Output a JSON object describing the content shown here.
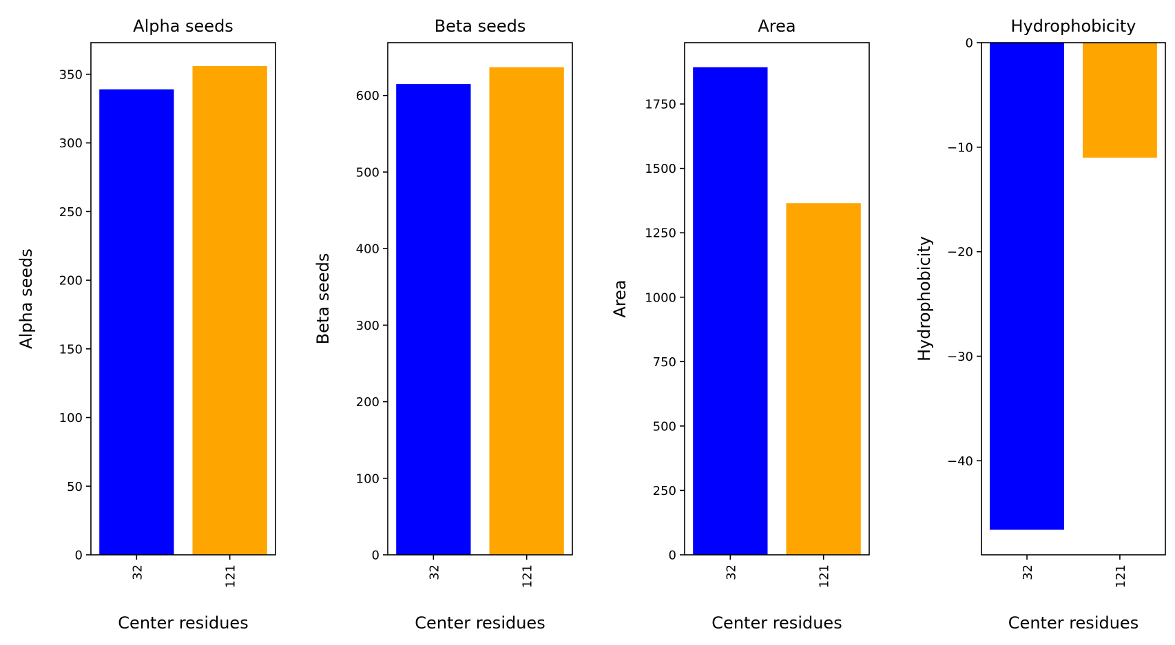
{
  "chart_data": [
    {
      "type": "bar",
      "title": "Alpha seeds",
      "xlabel": "Center residues",
      "ylabel": "Alpha seeds",
      "categories": [
        "32",
        "121"
      ],
      "values": [
        339,
        356
      ],
      "colors": [
        "#0000ff",
        "#ffa500"
      ],
      "ylim": [
        0,
        373
      ],
      "yticks": [
        0,
        50,
        100,
        150,
        200,
        250,
        300,
        350
      ],
      "ytick_labels": [
        "0",
        "50",
        "100",
        "150",
        "200",
        "250",
        "300",
        "350"
      ]
    },
    {
      "type": "bar",
      "title": "Beta seeds",
      "xlabel": "Center residues",
      "ylabel": "Beta seeds",
      "categories": [
        "32",
        "121"
      ],
      "values": [
        615,
        637
      ],
      "colors": [
        "#0000ff",
        "#ffa500"
      ],
      "ylim": [
        0,
        669
      ],
      "yticks": [
        0,
        100,
        200,
        300,
        400,
        500,
        600
      ],
      "ytick_labels": [
        "0",
        "100",
        "200",
        "300",
        "400",
        "500",
        "600"
      ]
    },
    {
      "type": "bar",
      "title": "Area",
      "xlabel": "Center residues",
      "ylabel": "Area",
      "categories": [
        "32",
        "121"
      ],
      "values": [
        1893,
        1365
      ],
      "colors": [
        "#0000ff",
        "#ffa500"
      ],
      "ylim": [
        0,
        1988
      ],
      "yticks": [
        0,
        250,
        500,
        750,
        1000,
        1250,
        1500,
        1750
      ],
      "ytick_labels": [
        "0",
        "250",
        "500",
        "750",
        "1000",
        "1250",
        "1500",
        "1750"
      ]
    },
    {
      "type": "bar",
      "title": "Hydrophobicity",
      "xlabel": "Center residues",
      "ylabel": "Hydrophobicity",
      "categories": [
        "32",
        "121"
      ],
      "values": [
        -46.6,
        -11.0
      ],
      "colors": [
        "#0000ff",
        "#ffa500"
      ],
      "ylim": [
        -49,
        0
      ],
      "yticks": [
        0,
        -10,
        -20,
        -30,
        -40
      ],
      "ytick_labels": [
        "0",
        "−10",
        "−20",
        "−30",
        "−40"
      ]
    }
  ]
}
